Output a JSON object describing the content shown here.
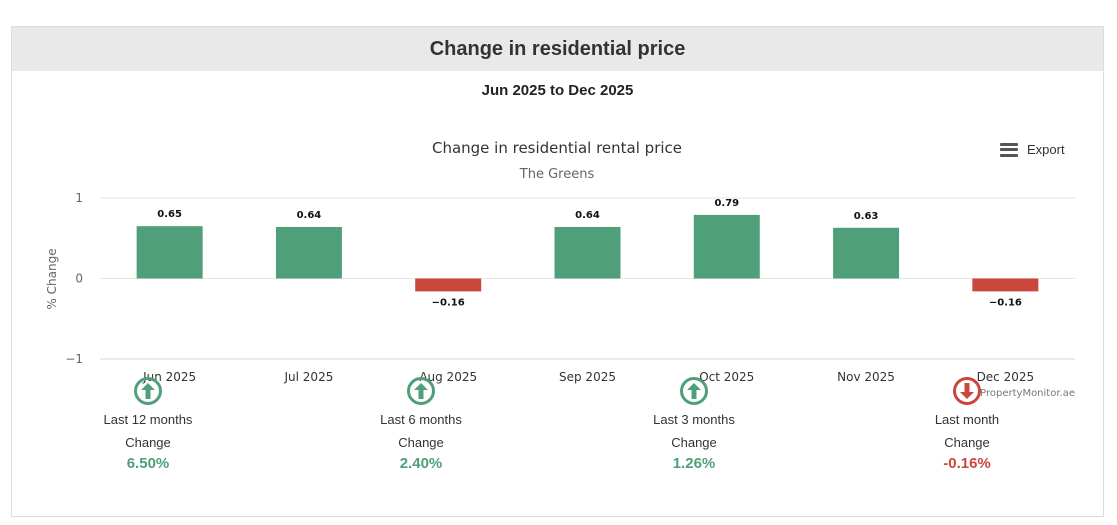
{
  "header": {
    "title": "Change in residential price"
  },
  "date_range": "Jun 2025 to Dec 2025",
  "export": {
    "label": "Export",
    "icon": "menu-icon"
  },
  "colors": {
    "positive": "#4f9f7a",
    "negative": "#c9473b",
    "header_bg": "#e9e9e9"
  },
  "chart_data": {
    "type": "bar",
    "title": "Change in residential rental price",
    "subtitle": "The Greens",
    "ylabel": "% Change",
    "xlabel": "",
    "ylim": [
      -1,
      1
    ],
    "yticks": [
      "1",
      "0",
      "−1"
    ],
    "categories": [
      "Jun 2025",
      "Jul 2025",
      "Aug 2025",
      "Sep 2025",
      "Oct 2025",
      "Nov 2025",
      "Dec 2025"
    ],
    "values": [
      0.65,
      0.64,
      -0.16,
      0.64,
      0.79,
      0.63,
      -0.16
    ],
    "data_labels": [
      "0.65",
      "0.64",
      "−0.16",
      "0.64",
      "0.79",
      "0.63",
      "−0.16"
    ],
    "credits": "PropertyMonitor.ae",
    "grid": true,
    "legend": "none"
  },
  "summary": [
    {
      "period": "Last 12 months",
      "label": "Change",
      "value": "6.50%",
      "direction": "up"
    },
    {
      "period": "Last 6 months",
      "label": "Change",
      "value": "2.40%",
      "direction": "up"
    },
    {
      "period": "Last 3 months",
      "label": "Change",
      "value": "1.26%",
      "direction": "up"
    },
    {
      "period": "Last month",
      "label": "Change",
      "value": "-0.16%",
      "direction": "down"
    }
  ]
}
